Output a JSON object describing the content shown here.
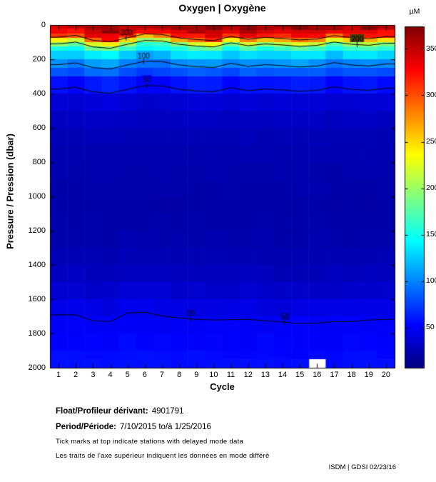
{
  "title": "Oxygen | Oxygène",
  "colorbar": {
    "unit_label": "µM",
    "ticks": [
      50,
      100,
      150,
      200,
      250,
      300,
      350
    ],
    "vmin": 7,
    "vmax": 374
  },
  "axes": {
    "x_label": "Cycle",
    "y_label": "Pressure / Pression (dbar)",
    "x_ticks": [
      1,
      2,
      3,
      4,
      5,
      6,
      7,
      8,
      9,
      10,
      11,
      12,
      13,
      14,
      15,
      16,
      17,
      18,
      19,
      20
    ],
    "y_ticks": [
      0,
      200,
      400,
      600,
      800,
      1000,
      1200,
      1400,
      1600,
      1800,
      2000
    ],
    "y_max": 2000
  },
  "colors": {
    "background": "#ffffff",
    "frame": "#000000",
    "contour": "#000000",
    "missing": "#ffffff"
  },
  "chart_data": {
    "type": "heatmap",
    "colormap": "jet",
    "x": [
      1,
      2,
      3,
      4,
      5,
      6,
      7,
      8,
      9,
      10,
      11,
      12,
      13,
      14,
      15,
      16,
      17,
      18,
      19,
      20
    ],
    "depths": [
      0,
      10,
      20,
      30,
      50,
      75,
      100,
      125,
      150,
      200,
      250,
      300,
      400,
      500,
      600,
      700,
      800,
      900,
      1000,
      1100,
      1200,
      1300,
      1400,
      1500,
      1600,
      1700,
      1800,
      1900,
      1950,
      2000
    ],
    "base_profile": [
      362,
      363,
      361,
      357,
      345,
      318,
      245,
      185,
      155,
      118,
      95,
      76,
      44,
      34,
      29,
      26,
      24,
      23,
      22,
      22,
      23,
      25,
      28,
      32,
      40,
      50,
      52,
      55,
      57,
      59
    ],
    "cycle_shift_shallow": [
      -10,
      -20,
      7,
      15,
      -8,
      -30,
      -28,
      -8,
      2,
      7,
      -18,
      0,
      -10,
      -4,
      4,
      -2,
      -22,
      -8,
      -2,
      -14
    ],
    "cycle_shift_deep": [
      0,
      -12,
      21,
      25,
      -25,
      -29,
      -8,
      4,
      12,
      17,
      0,
      12,
      21,
      50,
      37,
      33,
      29,
      25,
      17,
      12
    ],
    "cycle_surface_anom": [
      -0.03,
      -0.04,
      -0.01,
      0,
      -0.02,
      -0.015,
      0,
      0.01,
      -0.01,
      0.02,
      0.025,
      0,
      -0.02,
      -0.01,
      0,
      0.005,
      0.01,
      -0.025,
      -0.015,
      -0.02
    ],
    "texture_amplitude": 0.04,
    "contour_levels": [
      300,
      200,
      100,
      50
    ],
    "contour_labels": [
      {
        "text": "300",
        "value": 300,
        "cycle": 4.9,
        "branch": 0
      },
      {
        "text": "200",
        "value": 200,
        "cycle": 18.3,
        "branch": 0
      },
      {
        "text": "100",
        "value": 100,
        "cycle": 5.9,
        "branch": 0
      },
      {
        "text": "50",
        "value": 50,
        "cycle": 6.1,
        "branch": 0
      },
      {
        "text": "50",
        "value": 50,
        "cycle": 8.65,
        "branch": 1
      },
      {
        "text": "50",
        "value": 50,
        "cycle": 14.1,
        "branch": 1
      }
    ],
    "missing_cells": [
      {
        "cycle": 16,
        "depth_top": 1950,
        "depth_bottom": 2000
      }
    ],
    "delayed_mode_cycles": [
      1,
      2,
      3,
      4,
      5,
      6,
      7,
      8,
      9,
      10,
      11,
      12,
      13,
      14,
      15,
      16,
      17,
      18,
      19,
      20
    ]
  },
  "annotations": {
    "float_label": "Float/Profileur dérivant:",
    "float_value": "4901791",
    "period_label": "Period/Période:",
    "period_value": "7/10/2015  to/à  1/25/2016",
    "note_en": "Tick marks at top indicate stations with delayed mode data",
    "note_fr": "Les traits de l'axe supérieur indiquent les données en mode différé",
    "credit": "ISDM | GDSI  02/23/16"
  }
}
